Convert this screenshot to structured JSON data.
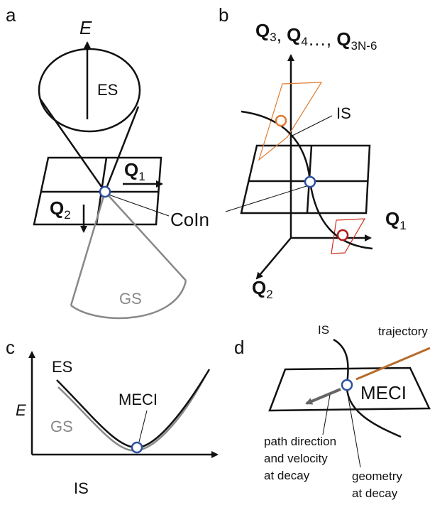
{
  "panel_a": {
    "label": "a",
    "energy_axis": "E",
    "upper_surface": "ES",
    "lower_surface": "GS",
    "q1": {
      "text": "Q",
      "sub": "1"
    },
    "q2": {
      "text": "Q",
      "sub": "2"
    },
    "intersection": "CoIn"
  },
  "panel_b": {
    "label": "b",
    "vertical_axis": [
      {
        "text": "Q",
        "sub": "3"
      },
      {
        "sep": ", "
      },
      {
        "text": "Q",
        "sub": "4"
      },
      {
        "sep": "…, "
      },
      {
        "text": "Q",
        "sub": "3N-6"
      }
    ],
    "seam": "IS",
    "q1": {
      "text": "Q",
      "sub": "1"
    },
    "q2": {
      "text": "Q",
      "sub": "2"
    }
  },
  "panel_c": {
    "label": "c",
    "upper_surface": "ES",
    "energy_axis": "E",
    "lower_surface": "GS",
    "point": "MECI",
    "horizontal_axis": "IS"
  },
  "panel_d": {
    "label": "d",
    "seam": "IS",
    "path": "trajectory",
    "point": "MECI",
    "direction_note": [
      "path direction",
      "and velocity",
      "at decay"
    ],
    "geometry_note": [
      "geometry",
      "at decay"
    ]
  }
}
